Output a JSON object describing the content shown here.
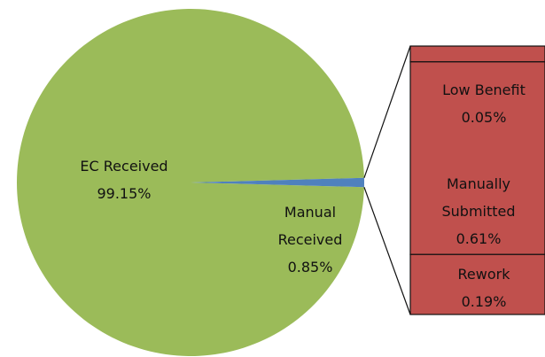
{
  "chart_data": {
    "type": "pie",
    "categories": [
      "EC Received",
      "Manual Received"
    ],
    "values": [
      99.15,
      0.85
    ],
    "value_labels": [
      "99.15%",
      "0.85%"
    ],
    "colors": [
      "#9bbb59",
      "#4f81bd"
    ],
    "breakdown": {
      "categories": [
        "Low Benefit",
        "Manually Submitted",
        "Rework"
      ],
      "values": [
        0.05,
        0.61,
        0.19
      ],
      "value_labels": [
        "0.05%",
        "0.61%",
        "0.19%"
      ],
      "color": "#c0504d"
    }
  }
}
